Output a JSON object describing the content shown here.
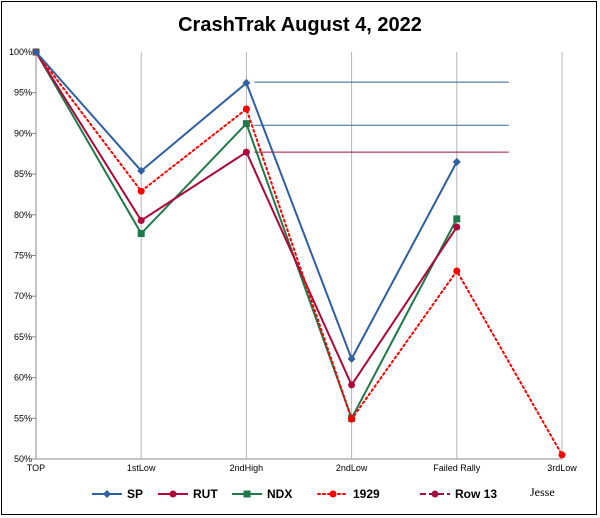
{
  "chart_data": {
    "type": "line",
    "title": "CrashTrak August 4, 2022",
    "categories": [
      "TOP",
      "1stLow",
      "2ndHigh",
      "2ndLow",
      "Failed Rally",
      "3rdLow"
    ],
    "y_ticks": [
      "50%",
      "55%",
      "60%",
      "65%",
      "70%",
      "75%",
      "80%",
      "85%",
      "90%",
      "95%",
      "100%"
    ],
    "ylim": [
      50,
      100
    ],
    "grid": "vertical",
    "legend_position": "bottom",
    "series": [
      {
        "name": "SP",
        "color": "#2e5fa3",
        "marker": "diamond",
        "dash": "solid",
        "values": [
          100,
          85.4,
          96.2,
          62.3,
          86.5,
          null
        ]
      },
      {
        "name": "RUT",
        "color": "#b0073a",
        "marker": "circle",
        "dash": "solid",
        "values": [
          100,
          79.3,
          87.7,
          59.1,
          78.5,
          null
        ]
      },
      {
        "name": "NDX",
        "color": "#1f7a4a",
        "marker": "square",
        "dash": "solid",
        "values": [
          100,
          77.7,
          91.2,
          55.0,
          79.5,
          null
        ]
      },
      {
        "name": "1929",
        "color": "#ff0000",
        "marker": "circle",
        "dash": "dotted",
        "values": [
          100,
          82.9,
          93.0,
          54.9,
          73.1,
          50.5
        ]
      },
      {
        "name": "Row 13",
        "color": "#a0103e",
        "marker": "circle",
        "dash": "dashed",
        "values": [
          null,
          null,
          null,
          null,
          null,
          null
        ]
      }
    ],
    "reference_lines": [
      {
        "series": "SP",
        "value": 96.3,
        "from": "2ndHigh",
        "to": "Failed Rally",
        "color": "#2e5fa3"
      },
      {
        "series": "NDX",
        "value": 91.0,
        "from": "2ndHigh",
        "to": "Failed Rally",
        "color": "#2e6f8f"
      },
      {
        "series": "RUT",
        "value": 87.7,
        "from": "2ndHigh",
        "to": "Failed Rally",
        "color": "#a0103e"
      }
    ]
  },
  "signature": "Jesse"
}
